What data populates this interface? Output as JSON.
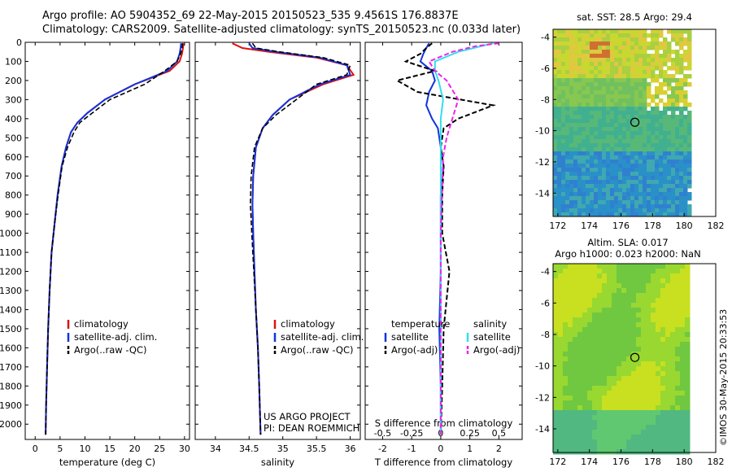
{
  "header": {
    "line1": "Argo profile: AO 5904352_69 22-May-2015 20150523_535 9.4561S 176.8837E",
    "line2": "Climatology: CARS2009. Satellite-adjusted climatology: synTS_20150523.nc (0.033d later)"
  },
  "colors": {
    "climatology": "#dd1111",
    "satellite": "#1133dd",
    "argo": "#000000",
    "satellite_s": "#33ddee",
    "argo_s": "#ee22ee"
  },
  "depth_ticks": [
    "0",
    "100",
    "200",
    "300",
    "400",
    "500",
    "600",
    "700",
    "800",
    "900",
    "1000",
    "1100",
    "1200",
    "1300",
    "1400",
    "1500",
    "1600",
    "1700",
    "1800",
    "1900",
    "2000"
  ],
  "chart_data": [
    {
      "type": "line",
      "xlabel": "temperature (deg C)",
      "xticks": [
        "0",
        "5",
        "10",
        "15",
        "20",
        "25",
        "30"
      ],
      "xlim": [
        -2,
        31
      ],
      "ylim": [
        2080,
        0
      ],
      "legend": {
        "placement": "lower-middle",
        "entries": [
          "climatology",
          "satellite-adj. clim.",
          "Argo(..raw -QC)"
        ]
      },
      "series": [
        {
          "name": "climatology",
          "x": [
            29.8,
            29.7,
            29.5,
            29.0,
            27.0,
            20.0,
            14.0,
            10.5,
            8.5,
            7.2,
            6.2,
            5.3,
            4.5,
            3.9,
            3.3,
            2.9,
            2.6,
            2.4,
            2.2,
            2.1
          ],
          "y": [
            5,
            30,
            60,
            100,
            150,
            220,
            300,
            370,
            420,
            470,
            550,
            650,
            800,
            950,
            1100,
            1300,
            1500,
            1700,
            1900,
            2055
          ]
        },
        {
          "name": "satellite-adj. clim.",
          "x": [
            29.3,
            29.2,
            29.0,
            28.5,
            26.5,
            20.0,
            14.0,
            10.5,
            8.5,
            7.2,
            6.2,
            5.3,
            4.5,
            3.9,
            3.3,
            2.9,
            2.6,
            2.4,
            2.2,
            2.1
          ],
          "y": [
            5,
            30,
            60,
            100,
            150,
            220,
            300,
            370,
            420,
            470,
            550,
            650,
            800,
            950,
            1100,
            1300,
            1500,
            1700,
            1900,
            2055
          ]
        },
        {
          "name": "Argo(..raw -QC)",
          "x": [
            29.6,
            29.5,
            29.2,
            28.5,
            26.0,
            22.0,
            15.0,
            11.5,
            9.0,
            7.8,
            6.5,
            5.4,
            4.6,
            3.9,
            3.3,
            2.9,
            2.6,
            2.4,
            2.2,
            2.1
          ],
          "y": [
            5,
            30,
            60,
            100,
            150,
            220,
            300,
            370,
            420,
            470,
            550,
            650,
            800,
            950,
            1100,
            1300,
            1500,
            1700,
            1900,
            2055
          ]
        }
      ]
    },
    {
      "type": "line",
      "xlabel": "salinity",
      "xticks": [
        "34",
        "34.5",
        "35",
        "35.5",
        "36"
      ],
      "xlim": [
        33.7,
        36.15
      ],
      "ylim": [
        2080,
        0
      ],
      "legend": {
        "placement": "lower-middle",
        "entries": [
          "climatology",
          "satellite-adj. clim.",
          "Argo(..raw -QC)"
        ]
      },
      "annotations": [
        "US ARGO PROJECT",
        "PI: DEAN ROEMMICH"
      ],
      "series": [
        {
          "name": "climatology",
          "x": [
            34.25,
            34.4,
            34.8,
            35.5,
            35.95,
            36.05,
            35.6,
            35.1,
            34.85,
            34.7,
            34.6,
            34.56,
            34.55,
            34.56,
            34.58,
            34.6,
            34.63,
            34.65,
            34.67
          ],
          "y": [
            5,
            30,
            50,
            80,
            120,
            170,
            220,
            300,
            380,
            450,
            550,
            700,
            850,
            1000,
            1200,
            1400,
            1600,
            1800,
            2055
          ]
        },
        {
          "name": "satellite-adj. clim.",
          "x": [
            34.5,
            34.55,
            34.9,
            35.55,
            35.95,
            36.0,
            35.55,
            35.1,
            34.85,
            34.7,
            34.6,
            34.56,
            34.55,
            34.56,
            34.58,
            34.6,
            34.63,
            34.65,
            34.67
          ],
          "y": [
            5,
            30,
            50,
            80,
            120,
            170,
            220,
            300,
            380,
            450,
            550,
            700,
            850,
            1000,
            1200,
            1400,
            1600,
            1800,
            2055
          ]
        },
        {
          "name": "Argo(..raw -QC)",
          "x": [
            34.55,
            34.6,
            34.95,
            35.6,
            36.0,
            35.95,
            35.5,
            35.2,
            34.9,
            34.7,
            34.58,
            34.53,
            34.52,
            34.54,
            34.57,
            34.6,
            34.63,
            34.65,
            34.67
          ],
          "y": [
            5,
            30,
            50,
            80,
            120,
            170,
            220,
            300,
            380,
            450,
            550,
            700,
            850,
            1000,
            1200,
            1400,
            1600,
            1800,
            2055
          ]
        }
      ]
    },
    {
      "type": "line",
      "xlabel": "T difference from climatology",
      "xlabel_top": "S difference from climatology",
      "xticks": [
        "-2",
        "-1",
        "0",
        "1",
        "2"
      ],
      "xticks_s": [
        "-0.5",
        "-0.25",
        "0",
        "0.25",
        "0.5"
      ],
      "xlim": [
        -2.6,
        2.8
      ],
      "ylim": [
        2080,
        0
      ],
      "legend": {
        "placement": "lower-middle",
        "temperature_title": "temperature",
        "salinity_title": "salinity",
        "entries_t": [
          "satellite",
          "Argo(-adj)"
        ],
        "entries_s": [
          "satellite",
          "Argo(-adj)"
        ]
      },
      "series": [
        {
          "name": "temperature satellite",
          "x": [
            -0.4,
            -0.5,
            -0.6,
            -0.7,
            -0.3,
            -0.2,
            -0.4,
            -0.5,
            -0.3,
            -0.1,
            0.0,
            0.1,
            0.0,
            0.0,
            0.0,
            -0.05,
            0.0,
            0.0
          ],
          "y": [
            5,
            30,
            60,
            100,
            150,
            200,
            260,
            330,
            400,
            450,
            550,
            650,
            800,
            1000,
            1200,
            1500,
            1800,
            2055
          ]
        },
        {
          "name": "temperature Argo(-adj)",
          "x": [
            -0.3,
            -0.5,
            -0.7,
            -1.2,
            -0.2,
            -1.5,
            -0.8,
            1.8,
            0.6,
            0.1,
            0.0,
            0.1,
            0.05,
            0.05,
            0.3,
            0.1,
            0.05,
            0.0
          ],
          "y": [
            5,
            30,
            60,
            100,
            150,
            200,
            260,
            330,
            400,
            450,
            550,
            650,
            800,
            1000,
            1200,
            1500,
            1800,
            2055
          ]
        },
        {
          "name": "salinity satellite",
          "x": [
            0.45,
            0.35,
            0.15,
            -0.05,
            -0.05,
            -0.02,
            0.02,
            0.0,
            0.0,
            0.0,
            0.0,
            0.0,
            0.0,
            0.0,
            0.0,
            0.0
          ],
          "y": [
            5,
            20,
            50,
            100,
            150,
            200,
            300,
            400,
            500,
            600,
            800,
            1000,
            1200,
            1500,
            1800,
            2055
          ]
        },
        {
          "name": "salinity Argo(-adj)",
          "x": [
            0.5,
            0.3,
            0.1,
            -0.1,
            -0.05,
            0.05,
            0.15,
            0.1,
            0.05,
            0.02,
            0.01,
            0.0,
            0.0,
            0.0,
            0.0,
            0.0
          ],
          "y": [
            5,
            20,
            50,
            100,
            150,
            200,
            300,
            400,
            500,
            600,
            800,
            1000,
            1200,
            1500,
            1800,
            2055
          ]
        }
      ]
    },
    {
      "type": "heatmap",
      "title": "sat. SST: 28.5 Argo: 29.4",
      "xticks": [
        "172",
        "174",
        "176",
        "178",
        "180",
        "182"
      ],
      "yticks": [
        "-4",
        "-6",
        "-8",
        "-10",
        "-12",
        "-14"
      ],
      "xlim": [
        171.7,
        182
      ],
      "ylim": [
        -15.5,
        -3.5
      ],
      "marker": {
        "lon": 176.88,
        "lat": -9.46
      }
    },
    {
      "type": "heatmap",
      "title": "Altim. SLA: 0.017",
      "subtitle": "Argo h1000: 0.023 h2000: NaN",
      "xticks": [
        "172",
        "174",
        "176",
        "178",
        "180",
        "182"
      ],
      "yticks": [
        "-4",
        "-6",
        "-8",
        "-10",
        "-12",
        "-14"
      ],
      "xlim": [
        171.7,
        182
      ],
      "ylim": [
        -15.5,
        -3.5
      ],
      "marker": {
        "lon": 176.88,
        "lat": -9.46
      }
    }
  ],
  "credit": "©IMOS 30-May-2015 20:33:53"
}
